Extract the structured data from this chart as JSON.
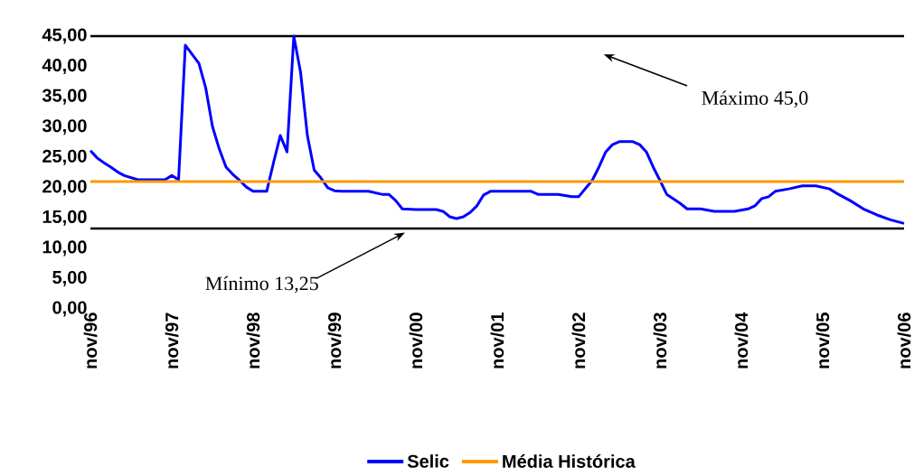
{
  "chart_data": {
    "type": "line",
    "xlim": [
      "1996-11",
      "2006-11"
    ],
    "xticks": [
      {
        "value": "1996-11",
        "label": "nov/96"
      },
      {
        "value": "1997-11",
        "label": "nov/97"
      },
      {
        "value": "1998-11",
        "label": "nov/98"
      },
      {
        "value": "1999-11",
        "label": "nov/99"
      },
      {
        "value": "2000-11",
        "label": "nov/00"
      },
      {
        "value": "2001-11",
        "label": "nov/01"
      },
      {
        "value": "2002-11",
        "label": "nov/02"
      },
      {
        "value": "2003-11",
        "label": "nov/03"
      },
      {
        "value": "2004-11",
        "label": "nov/04"
      },
      {
        "value": "2005-11",
        "label": "nov/05"
      },
      {
        "value": "2006-11",
        "label": "nov/06"
      }
    ],
    "ylim": [
      0,
      45
    ],
    "yticks": [
      {
        "value": 0,
        "label": "0,00"
      },
      {
        "value": 5,
        "label": "5,00"
      },
      {
        "value": 10,
        "label": "10,00"
      },
      {
        "value": 15,
        "label": "15,00"
      },
      {
        "value": 20,
        "label": "20,00"
      },
      {
        "value": 25,
        "label": "25,00"
      },
      {
        "value": 30,
        "label": "30,00"
      },
      {
        "value": 35,
        "label": "35,00"
      },
      {
        "value": 40,
        "label": "40,00"
      },
      {
        "value": 45,
        "label": "45,00"
      }
    ],
    "legend": "bottom",
    "series": [
      {
        "name": "Selic",
        "color": "#0000ff",
        "x": [
          "1996-11",
          "1996-12",
          "1997-01",
          "1997-02",
          "1997-03",
          "1997-04",
          "1997-06",
          "1997-10",
          "1997-11",
          "1997-12",
          "1998-01",
          "1998-03",
          "1998-04",
          "1998-05",
          "1998-06",
          "1998-07",
          "1998-08",
          "1998-09",
          "1998-10",
          "1998-11",
          "1999-01",
          "1999-02",
          "1999-03",
          "1999-04",
          "1999-05",
          "1999-06",
          "1999-07",
          "1999-08",
          "1999-09",
          "1999-10",
          "1999-11",
          "1999-12",
          "2000-04",
          "2000-06",
          "2000-07",
          "2000-08",
          "2000-09",
          "2000-11",
          "2001-02",
          "2001-03",
          "2001-04",
          "2001-05",
          "2001-06",
          "2001-07",
          "2001-08",
          "2001-09",
          "2001-10",
          "2002-04",
          "2002-05",
          "2002-08",
          "2002-10",
          "2002-11",
          "2003-01",
          "2003-02",
          "2003-03",
          "2003-04",
          "2003-05",
          "2003-07",
          "2003-08",
          "2003-09",
          "2003-10",
          "2003-11",
          "2003-12",
          "2004-02",
          "2004-03",
          "2004-05",
          "2004-07",
          "2004-10",
          "2004-12",
          "2005-01",
          "2005-02",
          "2005-03",
          "2005-04",
          "2005-06",
          "2005-08",
          "2005-10",
          "2005-12",
          "2006-01",
          "2006-03",
          "2006-05",
          "2006-07",
          "2006-09",
          "2006-11"
        ],
        "values": [
          26.1,
          24.9,
          24.1,
          23.4,
          22.6,
          22.0,
          21.3,
          21.3,
          22.0,
          21.3,
          43.5,
          40.5,
          36.5,
          30.1,
          26.4,
          23.4,
          22.2,
          21.2,
          20.1,
          19.4,
          19.4,
          24.1,
          28.6,
          25.9,
          45.0,
          39.0,
          28.6,
          22.9,
          21.6,
          20.0,
          19.5,
          19.4,
          19.4,
          18.9,
          18.9,
          17.9,
          16.5,
          16.4,
          16.4,
          16.1,
          15.2,
          14.9,
          15.2,
          15.9,
          17.0,
          18.8,
          19.4,
          19.4,
          18.9,
          18.9,
          18.5,
          18.5,
          21.2,
          23.4,
          25.9,
          27.1,
          27.6,
          27.6,
          27.1,
          25.9,
          23.4,
          21.2,
          18.9,
          17.4,
          16.5,
          16.5,
          16.1,
          16.1,
          16.5,
          17.0,
          18.2,
          18.5,
          19.4,
          19.8,
          20.3,
          20.3,
          19.8,
          19.1,
          17.9,
          16.5,
          15.5,
          14.7,
          14.1
        ]
      },
      {
        "name": "Média Histórica",
        "color": "#ff9900",
        "x": [
          "1996-11",
          "2006-11"
        ],
        "values": [
          21.0,
          21.0
        ]
      }
    ],
    "ref_lines": [
      {
        "axis": "y",
        "value": 45,
        "label": "Máximo 45,0",
        "color": "#000000"
      },
      {
        "axis": "y",
        "value": 13.25,
        "label": "Mínimo 13,25",
        "color": "#000000"
      }
    ]
  }
}
